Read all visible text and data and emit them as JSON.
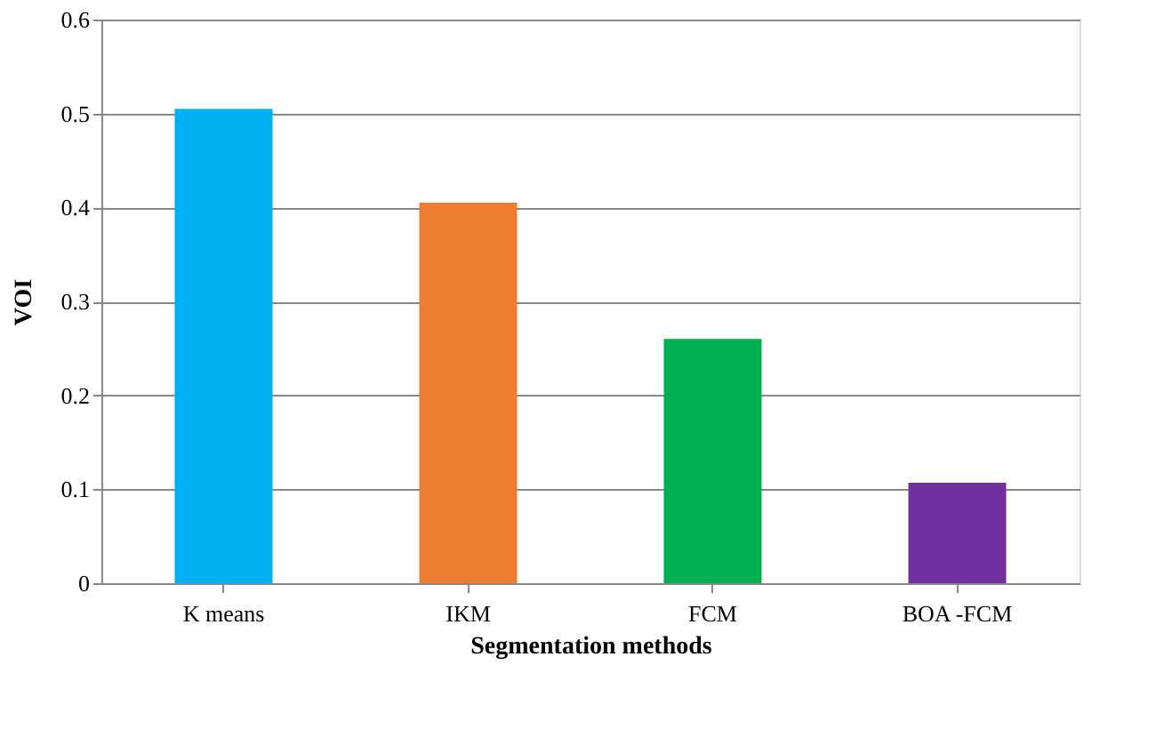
{
  "chart_data": {
    "type": "bar",
    "xlabel": "Segmentation methods",
    "ylabel": "VOI",
    "categories": [
      "K means",
      "IKM",
      "FCM",
      "BOA -FCM"
    ],
    "values": [
      0.505,
      0.405,
      0.26,
      0.107
    ],
    "colors": [
      "#00b0f0",
      "#ed7d31",
      "#00b050",
      "#7030a0"
    ],
    "ylim": [
      0,
      0.6
    ],
    "yticks": [
      0,
      0.1,
      0.2,
      0.3,
      0.4,
      0.5,
      0.6
    ],
    "grid": "y",
    "legend": false
  }
}
